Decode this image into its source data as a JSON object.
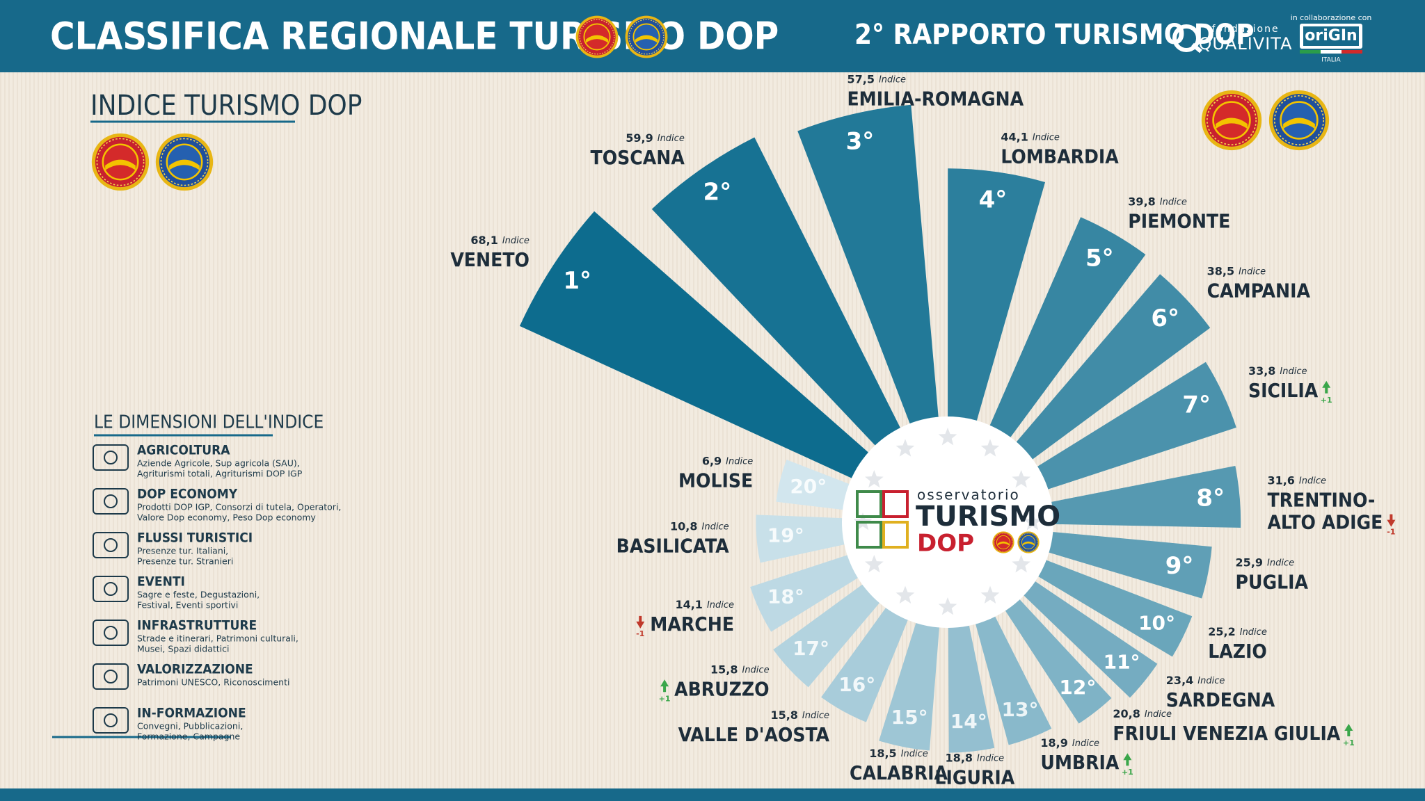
{
  "header": {
    "title": "CLASSIFICA REGIONALE TURISMO DOP",
    "report": "2° RAPPORTO TURISMO DOP",
    "foundation_small": "fondazione",
    "foundation": "QUALIVITA",
    "collab": "in collaborazione con",
    "partner": "oriGIn",
    "partner_country": "ITALIA"
  },
  "index_panel": {
    "title": "INDICE TURISMO DOP"
  },
  "dimensions": {
    "title": "LE DIMENSIONI DELL'INDICE",
    "items": [
      {
        "name": "AGRICOLTURA",
        "lines": [
          "Aziende Agricole, Sup agricola (SAU),",
          "Agriturismi totali, Agriturismi DOP IGP"
        ]
      },
      {
        "name": "DOP ECONOMY",
        "lines": [
          "Prodotti DOP IGP, Consorzi di tutela, Operatori,",
          "Valore Dop economy, Peso Dop economy"
        ]
      },
      {
        "name": "FLUSSI TURISTICI",
        "lines": [
          "Presenze tur. Italiani,",
          "Presenze tur. Stranieri"
        ]
      },
      {
        "name": "EVENTI",
        "lines": [
          "Sagre e feste, Degustazioni,",
          "Festival, Eventi sportivi"
        ]
      },
      {
        "name": "INFRASTRUTTURE",
        "lines": [
          "Strade e itinerari, Patrimoni culturali,",
          "Musei, Spazi didattici"
        ]
      },
      {
        "name": "VALORIZZAZIONE",
        "lines": [
          "Patrimoni UNESCO, Riconoscimenti"
        ]
      },
      {
        "name": "IN-FORMAZIONE",
        "lines": [
          "Convegni, Pubblicazioni,",
          "Formazione, Campagne"
        ]
      }
    ]
  },
  "center_logo": {
    "top": "osservatorio",
    "middle": "TURISMO",
    "bottom": "DOP"
  },
  "chart_data": {
    "type": "radial_bar",
    "categories": [
      "VENETO",
      "TOSCANA",
      "EMILIA-ROMAGNA",
      "LOMBARDIA",
      "PIEMONTE",
      "CAMPANIA",
      "SICILIA",
      "TRENTINO-ALTO ADIGE",
      "PUGLIA",
      "LAZIO",
      "SARDEGNA",
      "FRIULI VENEZIA GIULIA",
      "UMBRIA",
      "LIGURIA",
      "CALABRIA",
      "VALLE D'AOSTA",
      "ABRUZZO",
      "MARCHE",
      "BASILICATA",
      "MOLISE"
    ],
    "values": [
      68.1,
      59.9,
      57.5,
      44.1,
      39.8,
      38.5,
      33.8,
      31.6,
      25.9,
      25.2,
      23.4,
      20.8,
      18.9,
      18.8,
      18.5,
      15.8,
      15.8,
      14.1,
      10.8,
      6.9
    ],
    "value_labels": [
      "68,1",
      "59,9",
      "57,5",
      "44,1",
      "39,8",
      "38,5",
      "33,8",
      "31,6",
      "25,9",
      "25,2",
      "23,4",
      "20,8",
      "18,9",
      "18,8",
      "18,5",
      "15,8",
      "15,8",
      "14,1",
      "10,8",
      "6,9"
    ],
    "value_caption": "Indice",
    "ranks": [
      "1°",
      "2°",
      "3°",
      "4°",
      "5°",
      "6°",
      "7°",
      "8°",
      "9°",
      "10°",
      "11°",
      "12°",
      "13°",
      "14°",
      "15°",
      "16°",
      "17°",
      "18°",
      "19°",
      "20°"
    ],
    "changes": [
      null,
      null,
      null,
      null,
      null,
      null,
      "+1",
      "-1",
      null,
      null,
      null,
      "+1",
      "+1",
      null,
      null,
      null,
      "+1",
      "-1",
      null,
      null
    ],
    "colors": [
      "#0d6c8e",
      "#177293",
      "#227998",
      "#2c7f9d",
      "#3786a2",
      "#418ca7",
      "#4b92ac",
      "#5699b1",
      "#609fb6",
      "#6aa6bb",
      "#75acc1",
      "#7fb3c6",
      "#89b9cb",
      "#94bfd0",
      "#9ec6d5",
      "#a8ccda",
      "#b3d3df",
      "#bdd9e4",
      "#c8e0e9",
      "#d2e6ee"
    ]
  }
}
